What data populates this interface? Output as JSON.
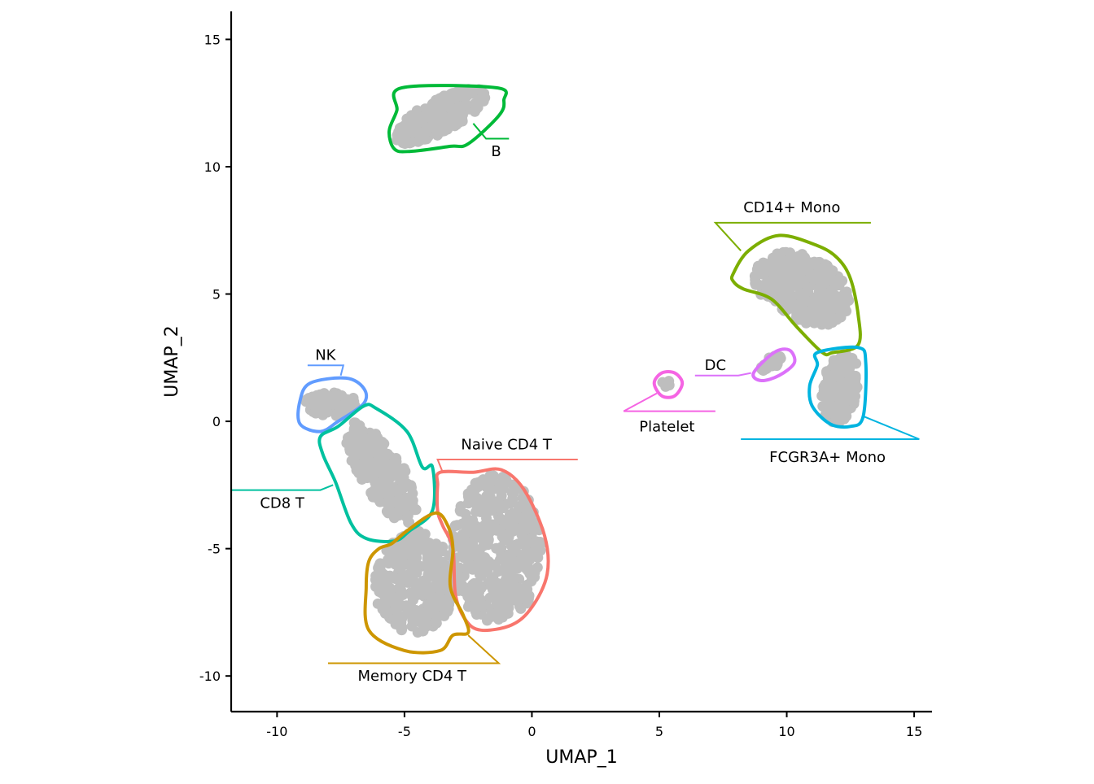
{
  "chart_data": {
    "type": "scatter",
    "title": "",
    "xlabel": "UMAP_1",
    "ylabel": "UMAP_2",
    "xlim": [
      -11.8,
      15.7
    ],
    "ylim": [
      -11.4,
      16.1
    ],
    "x_ticks": [
      -10,
      -5,
      0,
      5,
      10,
      15
    ],
    "x_tick_labels": [
      "-10",
      "-5",
      "0",
      "5",
      "10",
      "15"
    ],
    "y_ticks": [
      -10,
      -5,
      0,
      5,
      10,
      15
    ],
    "y_tick_labels": [
      "-10",
      "-5",
      "0",
      "5",
      "10",
      "15"
    ],
    "grid": false,
    "legend": "none",
    "point_color": "#BEBEBE",
    "clusters": [
      {
        "name": "B",
        "color": "#00BA38",
        "label_pos": [
          -1.4,
          10.6
        ],
        "leader": [
          [
            -2.3,
            11.7
          ],
          [
            -1.8,
            11.1
          ],
          [
            -0.9,
            11.1
          ]
        ],
        "hull": [
          [
            -5.1,
            13.1
          ],
          [
            -1.4,
            13.1
          ],
          [
            -1.1,
            12.6
          ],
          [
            -1.3,
            12.0
          ],
          [
            -2.5,
            10.9
          ],
          [
            -3.2,
            10.8
          ],
          [
            -4.8,
            10.6
          ],
          [
            -5.4,
            10.7
          ],
          [
            -5.6,
            11.4
          ],
          [
            -5.3,
            12.2
          ]
        ],
        "points_ellipse": {
          "cx": -3.6,
          "cy": 12.0,
          "rx": 2.0,
          "ry": 0.65,
          "angle_deg": 28,
          "n": 260
        }
      },
      {
        "name": "CD14+ Mono",
        "color": "#7CAE00",
        "label_pos": [
          10.2,
          8.4
        ],
        "leader": [
          [
            7.2,
            7.8
          ],
          [
            13.3,
            7.8
          ],
          [
            7.2,
            7.8
          ],
          [
            8.2,
            6.7
          ]
        ],
        "hull": [
          [
            7.9,
            5.8
          ],
          [
            8.5,
            6.7
          ],
          [
            9.7,
            7.3
          ],
          [
            11.2,
            6.9
          ],
          [
            12.0,
            6.4
          ],
          [
            12.5,
            5.6
          ],
          [
            12.8,
            4.2
          ],
          [
            12.8,
            3.0
          ],
          [
            11.8,
            2.7
          ],
          [
            11.4,
            2.7
          ],
          [
            10.4,
            3.7
          ],
          [
            9.4,
            4.8
          ],
          [
            8.3,
            5.2
          ],
          [
            7.9,
            5.5
          ]
        ],
        "points_ellipse": {
          "cx": 10.6,
          "cy": 5.2,
          "rx": 2.0,
          "ry": 1.3,
          "angle_deg": -25,
          "n": 320
        }
      },
      {
        "name": "FCGR3A+ Mono",
        "color": "#00B4E0",
        "label_pos": [
          11.6,
          -1.4
        ],
        "leader": [
          [
            13.0,
            0.2
          ],
          [
            15.2,
            -0.7
          ],
          [
            8.2,
            -0.7
          ]
        ],
        "hull": [
          [
            11.2,
            2.7
          ],
          [
            12.8,
            2.9
          ],
          [
            13.1,
            2.3
          ],
          [
            13.0,
            0.2
          ],
          [
            12.5,
            -0.2
          ],
          [
            11.7,
            -0.1
          ],
          [
            11.0,
            0.6
          ],
          [
            10.9,
            1.4
          ],
          [
            11.2,
            2.2
          ]
        ],
        "points_ellipse": {
          "cx": 12.1,
          "cy": 1.3,
          "rx": 0.7,
          "ry": 1.4,
          "angle_deg": -10,
          "n": 150
        }
      },
      {
        "name": "DC",
        "color": "#DC71FA",
        "label_pos": [
          7.2,
          2.2
        ],
        "leader": [
          [
            6.4,
            1.8
          ],
          [
            8.1,
            1.8
          ],
          [
            8.6,
            1.9
          ]
        ],
        "hull": [
          [
            8.7,
            1.9
          ],
          [
            9.5,
            2.7
          ],
          [
            10.1,
            2.8
          ],
          [
            10.3,
            2.3
          ],
          [
            9.7,
            1.8
          ],
          [
            9.0,
            1.6
          ]
        ],
        "points_ellipse": {
          "cx": 9.4,
          "cy": 2.3,
          "rx": 0.5,
          "ry": 0.22,
          "angle_deg": 35,
          "n": 30
        }
      },
      {
        "name": "Platelet",
        "color": "#F564E3",
        "label_pos": [
          5.3,
          -0.2
        ],
        "leader": [
          [
            4.9,
            1.1
          ],
          [
            3.6,
            0.4
          ],
          [
            7.2,
            0.4
          ]
        ],
        "hull": [
          [
            4.8,
            1.5
          ],
          [
            5.1,
            1.9
          ],
          [
            5.6,
            1.9
          ],
          [
            5.9,
            1.5
          ],
          [
            5.6,
            1.0
          ],
          [
            5.1,
            1.0
          ]
        ],
        "points_ellipse": {
          "cx": 5.3,
          "cy": 1.5,
          "rx": 0.18,
          "ry": 0.15,
          "angle_deg": 0,
          "n": 6
        }
      },
      {
        "name": "NK",
        "color": "#619CFF",
        "label_pos": [
          -8.1,
          2.6
        ],
        "leader": [
          [
            -8.8,
            2.2
          ],
          [
            -7.4,
            2.2
          ],
          [
            -7.5,
            1.8
          ]
        ],
        "hull": [
          [
            -8.7,
            1.5
          ],
          [
            -7.3,
            1.7
          ],
          [
            -6.6,
            1.3
          ],
          [
            -6.6,
            0.7
          ],
          [
            -7.6,
            0.0
          ],
          [
            -8.3,
            -0.4
          ],
          [
            -9.1,
            -0.1
          ],
          [
            -9.1,
            0.8
          ]
        ],
        "points_ellipse": {
          "cx": -7.8,
          "cy": 0.7,
          "rx": 1.1,
          "ry": 0.5,
          "angle_deg": 0,
          "n": 80
        }
      },
      {
        "name": "CD8 T",
        "color": "#00C19F",
        "label_pos": [
          -9.8,
          -3.2
        ],
        "leader": [
          [
            -7.8,
            -2.5
          ],
          [
            -8.3,
            -2.7
          ],
          [
            -11.8,
            -2.7
          ]
        ],
        "hull": [
          [
            -6.6,
            0.6
          ],
          [
            -6.1,
            0.5
          ],
          [
            -4.9,
            -0.4
          ],
          [
            -4.3,
            -1.8
          ],
          [
            -3.9,
            -1.8
          ],
          [
            -3.9,
            -3.5
          ],
          [
            -4.8,
            -4.3
          ],
          [
            -5.4,
            -4.7
          ],
          [
            -6.5,
            -4.6
          ],
          [
            -7.1,
            -4.0
          ],
          [
            -7.7,
            -2.4
          ],
          [
            -8.2,
            -1.3
          ],
          [
            -8.3,
            -0.6
          ],
          [
            -7.6,
            -0.2
          ]
        ],
        "points_ellipse": {
          "cx": -5.9,
          "cy": -2.0,
          "rx": 2.3,
          "ry": 0.85,
          "angle_deg": -58,
          "n": 220
        }
      },
      {
        "name": "Naive CD4 T",
        "color": "#F8766D",
        "label_pos": [
          -1.0,
          -0.9
        ],
        "leader": [
          [
            -3.7,
            -1.5
          ],
          [
            1.8,
            -1.5
          ],
          [
            -3.7,
            -1.5
          ],
          [
            -3.5,
            -2.0
          ]
        ],
        "hull": [
          [
            -3.6,
            -2.0
          ],
          [
            -2.3,
            -2.0
          ],
          [
            -1.2,
            -1.9
          ],
          [
            -0.3,
            -2.7
          ],
          [
            0.5,
            -4.5
          ],
          [
            0.6,
            -6.0
          ],
          [
            0.0,
            -7.3
          ],
          [
            -0.8,
            -8.0
          ],
          [
            -2.0,
            -8.2
          ],
          [
            -2.6,
            -7.8
          ],
          [
            -3.0,
            -6.8
          ],
          [
            -3.1,
            -5.0
          ],
          [
            -3.5,
            -4.1
          ],
          [
            -3.7,
            -3.5
          ],
          [
            -3.7,
            -2.5
          ]
        ],
        "points_ellipse": {
          "cx": -1.4,
          "cy": -5.0,
          "rx": 1.8,
          "ry": 2.9,
          "angle_deg": 0,
          "n": 420
        }
      },
      {
        "name": "Memory CD4 T",
        "color": "#CD9600",
        "label_pos": [
          -4.7,
          -10.0
        ],
        "leader": [
          [
            -2.5,
            -8.4
          ],
          [
            -1.3,
            -9.5
          ],
          [
            -8.0,
            -9.5
          ]
        ],
        "hull": [
          [
            -3.8,
            -3.6
          ],
          [
            -3.3,
            -4.1
          ],
          [
            -3.1,
            -5.0
          ],
          [
            -3.2,
            -6.5
          ],
          [
            -2.7,
            -7.6
          ],
          [
            -2.5,
            -8.3
          ],
          [
            -3.1,
            -8.4
          ],
          [
            -3.6,
            -9.0
          ],
          [
            -5.0,
            -9.0
          ],
          [
            -6.4,
            -8.2
          ],
          [
            -6.5,
            -6.5
          ],
          [
            -6.4,
            -5.5
          ],
          [
            -6.0,
            -5.0
          ],
          [
            -5.5,
            -4.8
          ],
          [
            -4.9,
            -4.3
          ]
        ],
        "points_ellipse": {
          "cx": -4.6,
          "cy": -6.3,
          "rx": 1.6,
          "ry": 2.0,
          "angle_deg": 0,
          "n": 320
        }
      }
    ]
  }
}
